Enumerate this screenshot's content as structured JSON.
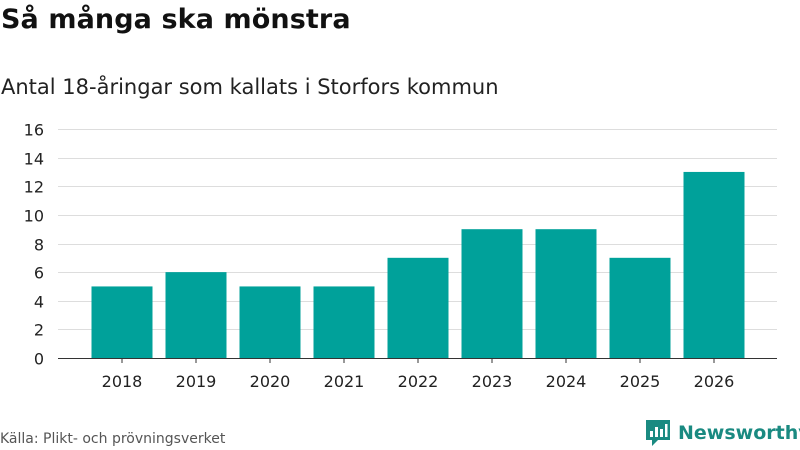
{
  "header": {
    "title": "Så många ska mönstra",
    "subtitle": "Antal 18-åringar som kallats i Storfors kommun"
  },
  "footer": {
    "source": "Källa: Plikt- och prövningsverket",
    "brand": "Newsworthy"
  },
  "colors": {
    "bar": "#00a19a",
    "brand": "#1a8a81",
    "grid": "#dddddd",
    "axis": "#333333"
  },
  "chart_data": {
    "type": "bar",
    "title": "Så många ska mönstra",
    "subtitle": "Antal 18-åringar som kallats i Storfors kommun",
    "xlabel": "",
    "ylabel": "",
    "categories": [
      "2018",
      "2019",
      "2020",
      "2021",
      "2022",
      "2023",
      "2024",
      "2025",
      "2026"
    ],
    "values": [
      5,
      6,
      5,
      5,
      7,
      9,
      9,
      7,
      13
    ],
    "ylim": [
      0,
      16
    ],
    "yticks": [
      0,
      2,
      4,
      6,
      8,
      10,
      12,
      14,
      16
    ],
    "grid": true,
    "legend": "none"
  }
}
